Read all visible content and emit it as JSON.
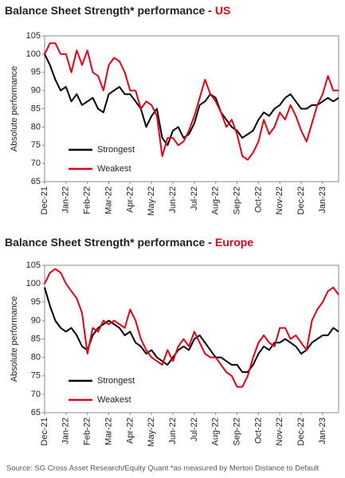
{
  "chart_data": [
    {
      "type": "line",
      "title": "Balance Sheet Strength* performance -",
      "title_region": "US",
      "y_label": "Absolute performance",
      "categories": [
        "Dec-21",
        null,
        null,
        null,
        "Jan-22",
        null,
        null,
        null,
        "Feb-22",
        null,
        null,
        null,
        "Mar-22",
        null,
        null,
        null,
        "Apr-22",
        null,
        null,
        null,
        "May-22",
        null,
        null,
        null,
        "Jun-22",
        null,
        null,
        null,
        "Jul-22",
        null,
        null,
        null,
        "Aug-22",
        null,
        null,
        null,
        "Sep-22",
        null,
        null,
        null,
        "Oct-22",
        null,
        null,
        null,
        "Nov-22",
        null,
        null,
        null,
        "Dec-22",
        null,
        null,
        null,
        "Jan-23",
        null,
        null,
        null
      ],
      "series": [
        {
          "name": "Strongest",
          "color": "#000000",
          "values": [
            100,
            97,
            93,
            90,
            91,
            87,
            89,
            86,
            87,
            88,
            85,
            84,
            89,
            90,
            91,
            89,
            89,
            87,
            85,
            80,
            83,
            85,
            77,
            75,
            79,
            80,
            77,
            78,
            81,
            86,
            87,
            89,
            88,
            84,
            82,
            80,
            79,
            77,
            78,
            79,
            82,
            84,
            83,
            85,
            86,
            88,
            89,
            87,
            85,
            85,
            86,
            86,
            87,
            88,
            87,
            88
          ]
        },
        {
          "name": "Weakest",
          "color": "#e0001b",
          "values": [
            100,
            103,
            103,
            100,
            100,
            95,
            101,
            97,
            101,
            95,
            94,
            90,
            97,
            99,
            98,
            95,
            90,
            90,
            85,
            87,
            86,
            83,
            72,
            77,
            77,
            75,
            76,
            79,
            83,
            88,
            93,
            89,
            87,
            84,
            80,
            82,
            78,
            72,
            71,
            73,
            76,
            82,
            78,
            80,
            84,
            82,
            86,
            83,
            79,
            76,
            81,
            86,
            89,
            94,
            90,
            90
          ]
        }
      ],
      "ylim": [
        65,
        105
      ],
      "yticks": [
        65,
        70,
        75,
        80,
        85,
        90,
        95,
        100,
        105
      ],
      "legend": "lower left"
    },
    {
      "type": "line",
      "title": "Balance Sheet Strength* performance -",
      "title_region": "Europe",
      "y_label": "Absolute performance",
      "categories": [
        "Dec-21",
        null,
        null,
        null,
        "Jan-22",
        null,
        null,
        null,
        "Feb-22",
        null,
        null,
        null,
        "Mar-22",
        null,
        null,
        null,
        "Apr-22",
        null,
        null,
        null,
        "May-22",
        null,
        null,
        null,
        "Jun-22",
        null,
        null,
        null,
        "Jul-22",
        null,
        null,
        null,
        "Aug-22",
        null,
        null,
        null,
        "Sep-22",
        null,
        null,
        null,
        "Oct-22",
        null,
        null,
        null,
        "Nov-22",
        null,
        null,
        null,
        "Dec-22",
        null,
        null,
        null,
        "Jan-23",
        null,
        null,
        null
      ],
      "series": [
        {
          "name": "Strongest",
          "color": "#000000",
          "values": [
            99,
            94,
            90,
            88,
            87,
            88,
            86,
            83,
            82,
            86,
            88,
            89,
            90,
            89,
            88,
            86,
            87,
            84,
            83,
            81,
            82,
            80,
            79,
            78,
            80,
            82,
            83,
            82,
            85,
            86,
            84,
            82,
            80,
            80,
            79,
            78,
            78,
            76,
            76,
            78,
            81,
            83,
            82,
            84,
            84,
            85,
            84,
            83,
            81,
            82,
            84,
            85,
            86,
            86,
            88,
            87
          ]
        },
        {
          "name": "Weakest",
          "color": "#e0001b",
          "values": [
            100,
            103,
            104,
            103,
            100,
            98,
            96,
            92,
            81,
            88,
            87,
            90,
            89,
            90,
            89,
            88,
            93,
            90,
            85,
            82,
            80,
            79,
            78,
            82,
            79,
            83,
            85,
            83,
            87,
            84,
            81,
            80,
            80,
            78,
            76,
            75,
            72,
            72,
            75,
            80,
            84,
            86,
            84,
            83,
            88,
            88,
            85,
            86,
            84,
            82,
            90,
            93,
            95,
            98,
            99,
            97
          ]
        }
      ],
      "ylim": [
        65,
        105
      ],
      "yticks": [
        65,
        70,
        75,
        80,
        85,
        90,
        95,
        100,
        105
      ],
      "legend": "lower left"
    }
  ],
  "source": "Source: SG Cross Asset Research/Equity Quant *as measured by Merton Distance to Default"
}
